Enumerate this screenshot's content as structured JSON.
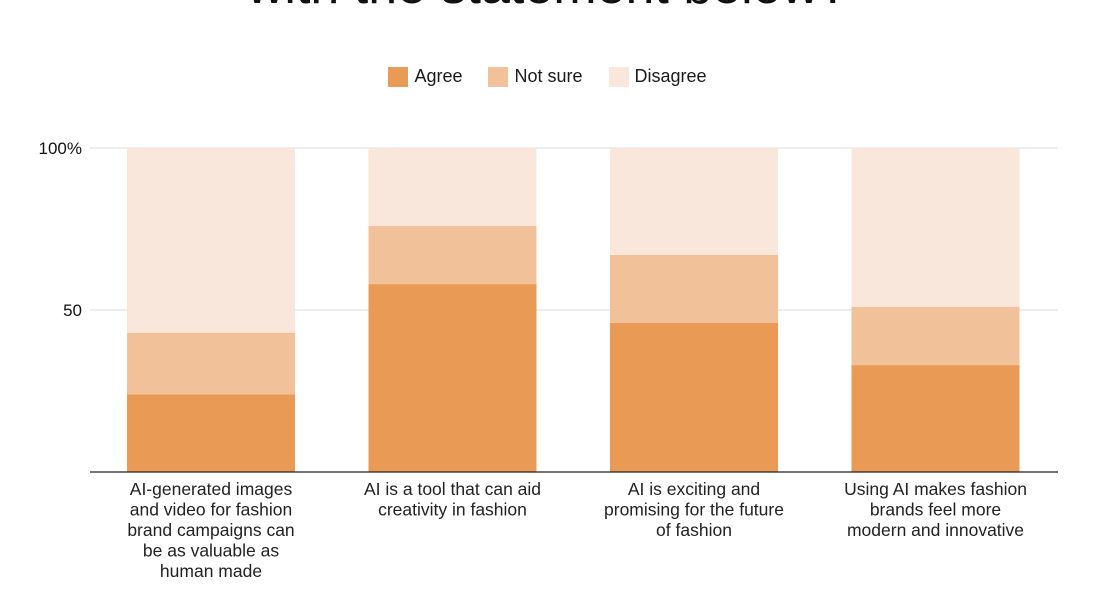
{
  "chart_data": {
    "type": "bar",
    "stacked": true,
    "title": "with the statement below?",
    "categories": [
      [
        "AI-generated images",
        "and video for fashion",
        "brand campaigns can",
        "be as valuable as",
        "human made"
      ],
      [
        "AI is a tool that can aid",
        "creativity in fashion"
      ],
      [
        "AI is exciting and",
        "promising for the future",
        "of fashion"
      ],
      [
        "Using AI makes fashion",
        "brands feel more",
        "modern and innovative"
      ]
    ],
    "series": [
      {
        "name": "Agree",
        "color": "#E99A55",
        "values": [
          24,
          58,
          46,
          33
        ]
      },
      {
        "name": "Not sure",
        "color": "#F1C19A",
        "values": [
          19,
          18,
          21,
          18
        ]
      },
      {
        "name": "Disagree",
        "color": "#F9E7DB",
        "values": [
          57,
          24,
          33,
          49
        ]
      }
    ],
    "ylim": [
      0,
      100
    ],
    "yticks": [
      {
        "value": 50,
        "label": "50"
      },
      {
        "value": 100,
        "label": "100%"
      }
    ],
    "legend_position": "top-center"
  }
}
